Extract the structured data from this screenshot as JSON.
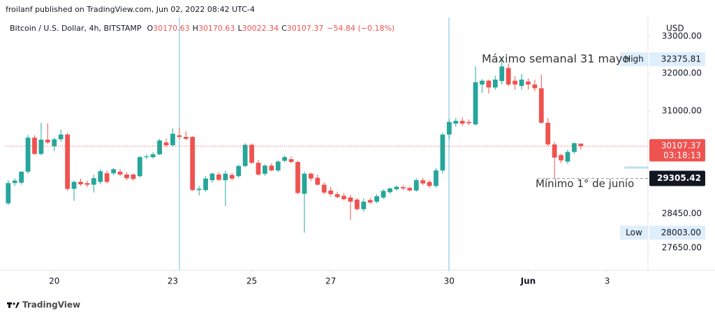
{
  "header": {
    "published": "froilanf published on TradingView.com, Jun 02, 2022 08:42 UTC-4",
    "watermark": "TradingView"
  },
  "chart_data": {
    "type": "candlestick",
    "symbol": "Bitcoin / U.S. Dollar, 4h, BITSTAMP",
    "ohlc_labels": [
      "O",
      "H",
      "L",
      "C"
    ],
    "change": "−54.84 (−0.18%)",
    "currency": "USD",
    "up_color": "#26a69a",
    "down_color": "#ef5350",
    "log_scale": true,
    "ylim": [
      27170,
      33430
    ],
    "yticks": [
      {
        "value": 33000,
        "label": "33000.00"
      },
      {
        "value": 32000,
        "label": "32000.00"
      },
      {
        "value": 31000,
        "label": "31000.00"
      },
      {
        "value": 28450,
        "label": "28450.00"
      },
      {
        "value": 27650,
        "label": "27650.00"
      }
    ],
    "xlim": [
      -0.4,
      97.2
    ],
    "xticks": [
      {
        "value": 7,
        "label": "20"
      },
      {
        "value": 25,
        "label": "23"
      },
      {
        "value": 37,
        "label": "25"
      },
      {
        "value": 49,
        "label": "27"
      },
      {
        "value": 67,
        "label": "30"
      },
      {
        "value": 79,
        "label": "Jun"
      },
      {
        "value": 91,
        "label": "3"
      }
    ],
    "values": [
      [
        28700,
        29260,
        28660,
        29190
      ],
      [
        29190,
        29310,
        29120,
        29250
      ],
      [
        29200,
        29480,
        29150,
        29470
      ],
      [
        29470,
        30390,
        29420,
        30320
      ],
      [
        30320,
        30380,
        29890,
        29910
      ],
      [
        29910,
        30700,
        29880,
        30270
      ],
      [
        30270,
        30690,
        30160,
        30200
      ],
      [
        30100,
        30320,
        29980,
        30280
      ],
      [
        30280,
        30530,
        30220,
        30400
      ],
      [
        30400,
        30440,
        29000,
        29050
      ],
      [
        29050,
        29250,
        28760,
        29220
      ],
      [
        29220,
        29300,
        29120,
        29160
      ],
      [
        29190,
        29250,
        29090,
        29150
      ],
      [
        29150,
        29400,
        28960,
        29310
      ],
      [
        29220,
        29530,
        29160,
        29480
      ],
      [
        29430,
        29500,
        29180,
        29220
      ],
      [
        29430,
        29560,
        29380,
        29530
      ],
      [
        29470,
        29540,
        29360,
        29400
      ],
      [
        29400,
        29460,
        29260,
        29310
      ],
      [
        29400,
        29430,
        29250,
        29290
      ],
      [
        29360,
        29860,
        29330,
        29830
      ],
      [
        29830,
        29900,
        29780,
        29850
      ],
      [
        29830,
        29960,
        29790,
        29900
      ],
      [
        29900,
        30290,
        29880,
        30250
      ],
      [
        30200,
        30300,
        30080,
        30130
      ],
      [
        30130,
        30560,
        30100,
        30420
      ],
      [
        30380,
        30570,
        30280,
        30340
      ],
      [
        30340,
        30480,
        30260,
        30290
      ],
      [
        30340,
        30360,
        29000,
        29020
      ],
      [
        29020,
        29120,
        28890,
        29050
      ],
      [
        29020,
        29360,
        28980,
        29300
      ],
      [
        29260,
        29450,
        29200,
        29420
      ],
      [
        29400,
        29460,
        29240,
        29270
      ],
      [
        29260,
        29500,
        28640,
        29420
      ],
      [
        29390,
        29440,
        29250,
        29300
      ],
      [
        29360,
        29640,
        29320,
        29610
      ],
      [
        29610,
        30180,
        29580,
        30140
      ],
      [
        30140,
        30170,
        29660,
        29690
      ],
      [
        29690,
        29760,
        29370,
        29400
      ],
      [
        29420,
        29650,
        29370,
        29620
      ],
      [
        29620,
        29680,
        29480,
        29500
      ],
      [
        29500,
        29750,
        29460,
        29720
      ],
      [
        29740,
        29870,
        29700,
        29830
      ],
      [
        29780,
        29850,
        29680,
        29710
      ],
      [
        29710,
        29740,
        28920,
        28950
      ],
      [
        28930,
        29470,
        28003,
        29420
      ],
      [
        29420,
        29450,
        29240,
        29300
      ],
      [
        29320,
        29400,
        29130,
        29150
      ],
      [
        29150,
        29210,
        28920,
        28960
      ],
      [
        29010,
        29100,
        28860,
        28920
      ],
      [
        28920,
        28980,
        28820,
        28850
      ],
      [
        28880,
        28950,
        28770,
        28800
      ],
      [
        28840,
        28900,
        28300,
        28740
      ],
      [
        28790,
        28830,
        28530,
        28560
      ],
      [
        28560,
        28820,
        28500,
        28740
      ],
      [
        28780,
        28830,
        28680,
        28720
      ],
      [
        28740,
        28920,
        28700,
        28870
      ],
      [
        28840,
        29040,
        28800,
        29000
      ],
      [
        28970,
        29080,
        28930,
        29060
      ],
      [
        29040,
        29140,
        29000,
        29100
      ],
      [
        29090,
        29140,
        29020,
        29060
      ],
      [
        29070,
        29110,
        28990,
        29010
      ],
      [
        29010,
        29310,
        28980,
        29260
      ],
      [
        29260,
        29320,
        29140,
        29180
      ],
      [
        29220,
        29260,
        29070,
        29120
      ],
      [
        29120,
        29560,
        29080,
        29500
      ],
      [
        29500,
        30440,
        29420,
        30400
      ],
      [
        30400,
        30790,
        30280,
        30720
      ],
      [
        30680,
        30820,
        30600,
        30750
      ],
      [
        30750,
        30840,
        30620,
        30680
      ],
      [
        30720,
        30780,
        30640,
        30690
      ],
      [
        30660,
        32180,
        30620,
        31760
      ],
      [
        31700,
        31840,
        31480,
        31800
      ],
      [
        31800,
        31830,
        31460,
        31620
      ],
      [
        31620,
        31930,
        31560,
        31830
      ],
      [
        31790,
        32375.81,
        31700,
        32180
      ],
      [
        32140,
        32260,
        31650,
        31700
      ],
      [
        31800,
        31920,
        31560,
        31700
      ],
      [
        31660,
        31980,
        31560,
        31830
      ],
      [
        31780,
        31860,
        31560,
        31700
      ],
      [
        31700,
        31820,
        31520,
        31600
      ],
      [
        31600,
        31960,
        30680,
        30700
      ],
      [
        30700,
        30820,
        30110,
        30150
      ],
      [
        30150,
        30220,
        29305.42,
        29820
      ],
      [
        29880,
        29920,
        29680,
        29750
      ],
      [
        29720,
        30020,
        29660,
        29960
      ],
      [
        29960,
        30200,
        29920,
        30180
      ],
      [
        30170.63,
        30170.63,
        30022.34,
        30107.37
      ]
    ],
    "price_labels": {
      "high": {
        "name": "High",
        "value": 32375.81
      },
      "low": {
        "name": "Low",
        "value": 28003,
        "label": "28003.00"
      },
      "last": {
        "value": 30107.37,
        "countdown": "03:18:13"
      },
      "level": {
        "value": 29305.42
      }
    },
    "annotations": [
      "Máximo semanal 31 mayo",
      "Mínimo 1° de junio"
    ]
  }
}
